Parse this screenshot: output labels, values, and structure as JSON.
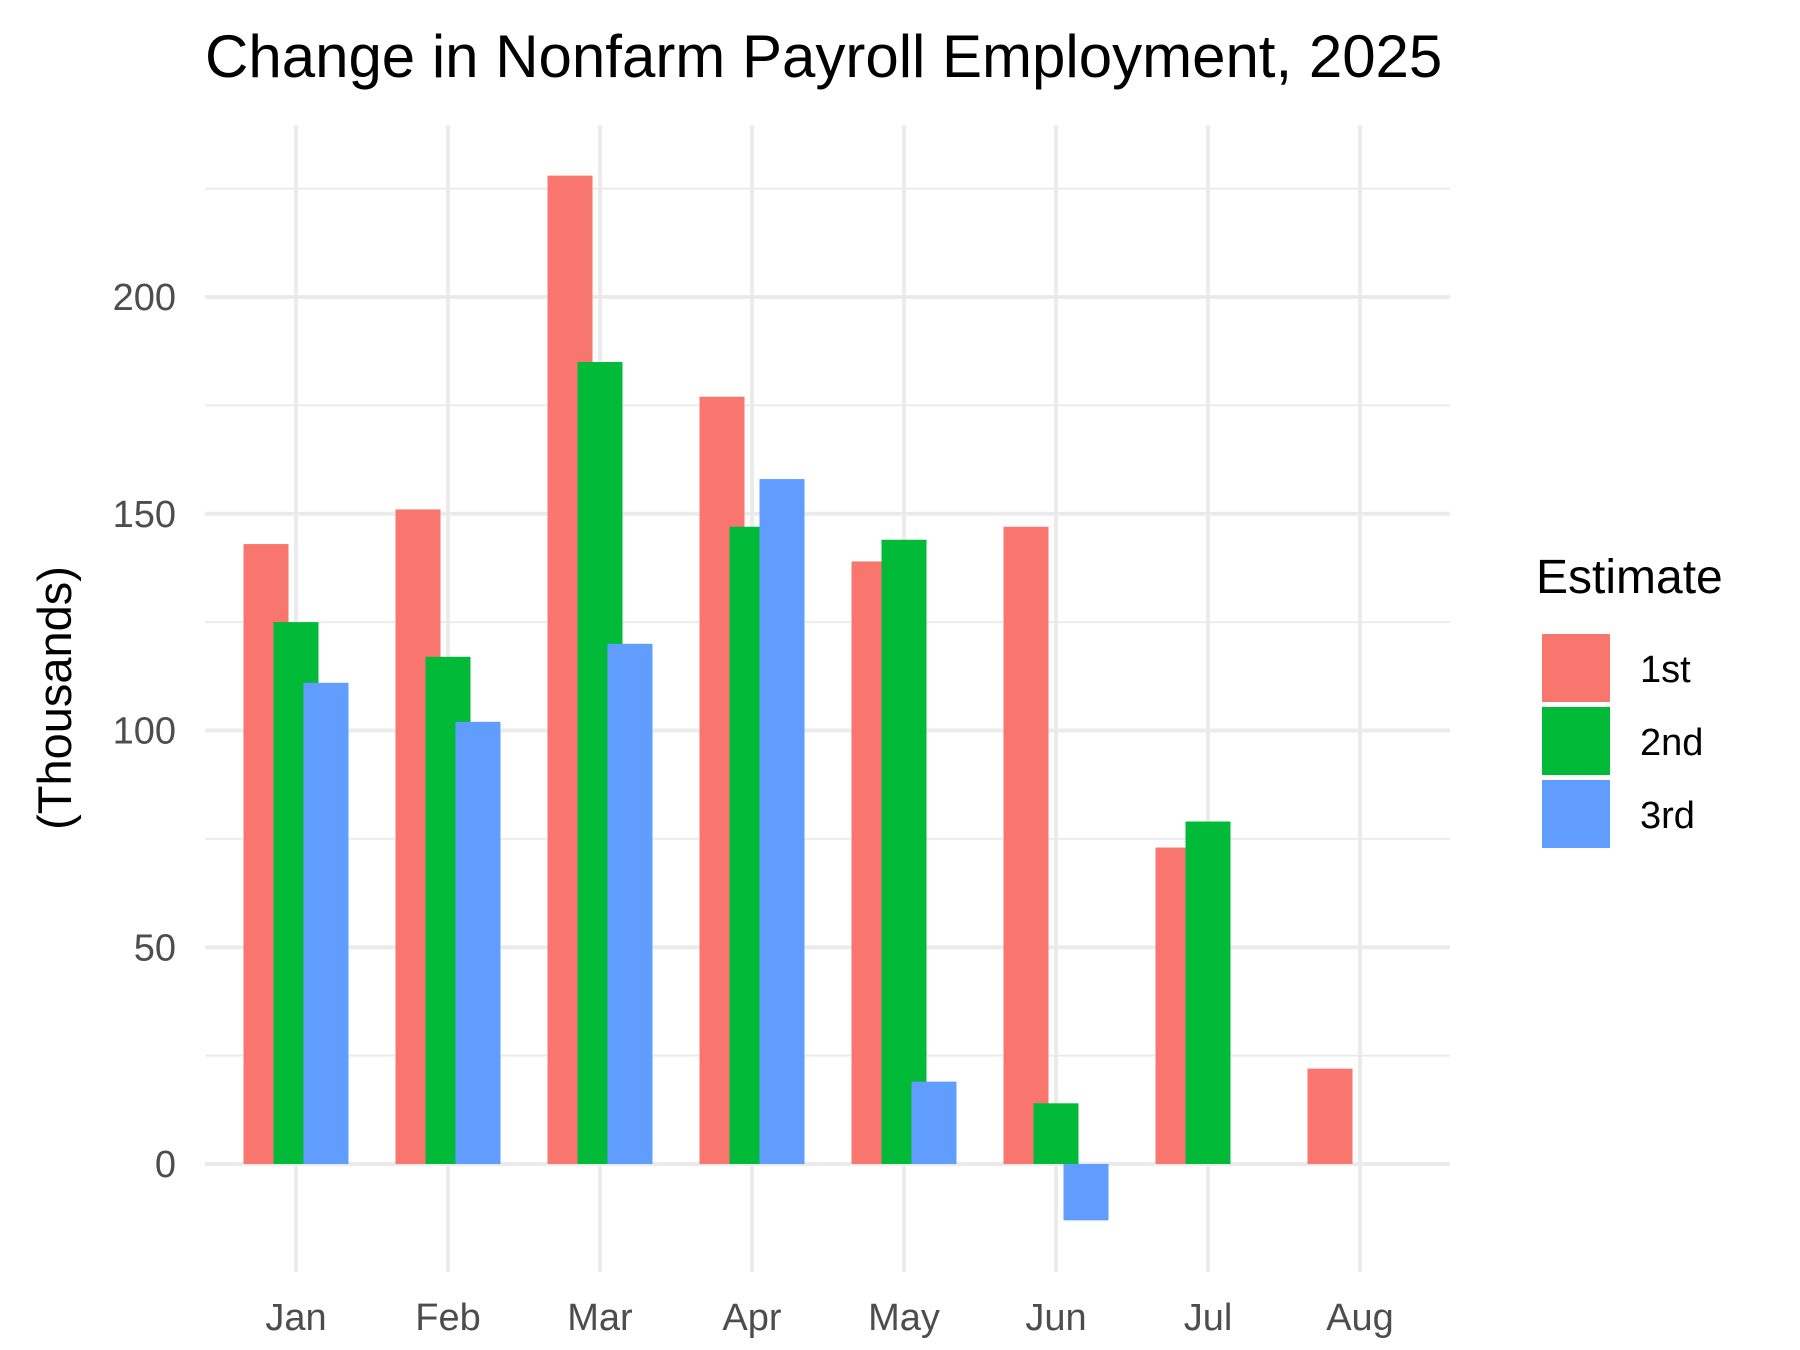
{
  "chart_data": {
    "type": "bar",
    "title": "Change in Nonfarm Payroll Employment, 2025",
    "xlabel": "",
    "ylabel": "(Thousands)",
    "categories": [
      "Jan",
      "Feb",
      "Mar",
      "Apr",
      "May",
      "Jun",
      "Jul",
      "Aug"
    ],
    "series": [
      {
        "name": "1st",
        "color": "#F8766D",
        "values": [
          143,
          151,
          228,
          177,
          139,
          147,
          73,
          22
        ]
      },
      {
        "name": "2nd",
        "color": "#00BA38",
        "values": [
          125,
          117,
          185,
          147,
          144,
          14,
          79,
          null
        ]
      },
      {
        "name": "3rd",
        "color": "#619CFF",
        "values": [
          111,
          102,
          120,
          158,
          19,
          -13,
          null,
          null
        ]
      }
    ],
    "yticks": [
      0,
      50,
      100,
      150,
      200
    ],
    "ylim": [
      -25,
      250
    ],
    "grid": true,
    "legend": {
      "title": "Estimate",
      "position": "right"
    }
  }
}
